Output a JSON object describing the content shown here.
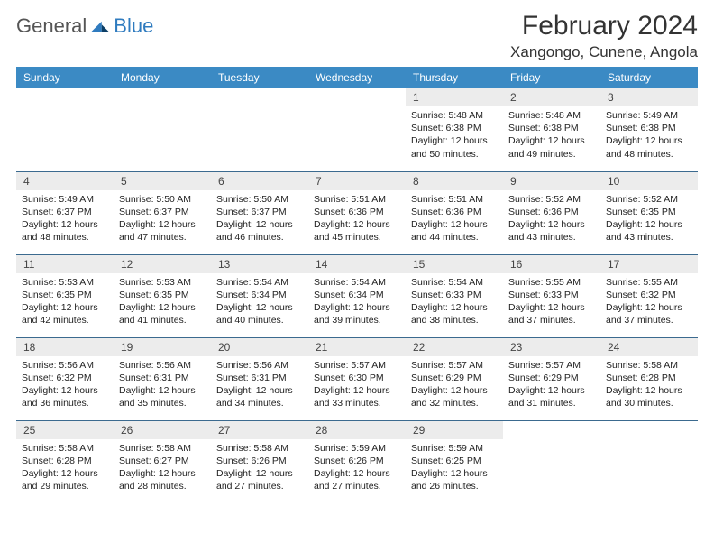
{
  "logo": {
    "general": "General",
    "blue": "Blue"
  },
  "title": "February 2024",
  "location": "Xangongo, Cunene, Angola",
  "colors": {
    "header_bg": "#3b8ac4",
    "header_fg": "#ffffff",
    "daynum_bg": "#ececec",
    "row_border": "#3b6a8f",
    "logo_blue": "#2f7bbf"
  },
  "weekdays": [
    "Sunday",
    "Monday",
    "Tuesday",
    "Wednesday",
    "Thursday",
    "Friday",
    "Saturday"
  ],
  "weeks": [
    [
      {
        "empty": true
      },
      {
        "empty": true
      },
      {
        "empty": true
      },
      {
        "empty": true
      },
      {
        "n": "1",
        "sr": "5:48 AM",
        "ss": "6:38 PM",
        "dh": "12",
        "dm": "50"
      },
      {
        "n": "2",
        "sr": "5:48 AM",
        "ss": "6:38 PM",
        "dh": "12",
        "dm": "49"
      },
      {
        "n": "3",
        "sr": "5:49 AM",
        "ss": "6:38 PM",
        "dh": "12",
        "dm": "48"
      }
    ],
    [
      {
        "n": "4",
        "sr": "5:49 AM",
        "ss": "6:37 PM",
        "dh": "12",
        "dm": "48"
      },
      {
        "n": "5",
        "sr": "5:50 AM",
        "ss": "6:37 PM",
        "dh": "12",
        "dm": "47"
      },
      {
        "n": "6",
        "sr": "5:50 AM",
        "ss": "6:37 PM",
        "dh": "12",
        "dm": "46"
      },
      {
        "n": "7",
        "sr": "5:51 AM",
        "ss": "6:36 PM",
        "dh": "12",
        "dm": "45"
      },
      {
        "n": "8",
        "sr": "5:51 AM",
        "ss": "6:36 PM",
        "dh": "12",
        "dm": "44"
      },
      {
        "n": "9",
        "sr": "5:52 AM",
        "ss": "6:36 PM",
        "dh": "12",
        "dm": "43"
      },
      {
        "n": "10",
        "sr": "5:52 AM",
        "ss": "6:35 PM",
        "dh": "12",
        "dm": "43"
      }
    ],
    [
      {
        "n": "11",
        "sr": "5:53 AM",
        "ss": "6:35 PM",
        "dh": "12",
        "dm": "42"
      },
      {
        "n": "12",
        "sr": "5:53 AM",
        "ss": "6:35 PM",
        "dh": "12",
        "dm": "41"
      },
      {
        "n": "13",
        "sr": "5:54 AM",
        "ss": "6:34 PM",
        "dh": "12",
        "dm": "40"
      },
      {
        "n": "14",
        "sr": "5:54 AM",
        "ss": "6:34 PM",
        "dh": "12",
        "dm": "39"
      },
      {
        "n": "15",
        "sr": "5:54 AM",
        "ss": "6:33 PM",
        "dh": "12",
        "dm": "38"
      },
      {
        "n": "16",
        "sr": "5:55 AM",
        "ss": "6:33 PM",
        "dh": "12",
        "dm": "37"
      },
      {
        "n": "17",
        "sr": "5:55 AM",
        "ss": "6:32 PM",
        "dh": "12",
        "dm": "37"
      }
    ],
    [
      {
        "n": "18",
        "sr": "5:56 AM",
        "ss": "6:32 PM",
        "dh": "12",
        "dm": "36"
      },
      {
        "n": "19",
        "sr": "5:56 AM",
        "ss": "6:31 PM",
        "dh": "12",
        "dm": "35"
      },
      {
        "n": "20",
        "sr": "5:56 AM",
        "ss": "6:31 PM",
        "dh": "12",
        "dm": "34"
      },
      {
        "n": "21",
        "sr": "5:57 AM",
        "ss": "6:30 PM",
        "dh": "12",
        "dm": "33"
      },
      {
        "n": "22",
        "sr": "5:57 AM",
        "ss": "6:29 PM",
        "dh": "12",
        "dm": "32"
      },
      {
        "n": "23",
        "sr": "5:57 AM",
        "ss": "6:29 PM",
        "dh": "12",
        "dm": "31"
      },
      {
        "n": "24",
        "sr": "5:58 AM",
        "ss": "6:28 PM",
        "dh": "12",
        "dm": "30"
      }
    ],
    [
      {
        "n": "25",
        "sr": "5:58 AM",
        "ss": "6:28 PM",
        "dh": "12",
        "dm": "29"
      },
      {
        "n": "26",
        "sr": "5:58 AM",
        "ss": "6:27 PM",
        "dh": "12",
        "dm": "28"
      },
      {
        "n": "27",
        "sr": "5:58 AM",
        "ss": "6:26 PM",
        "dh": "12",
        "dm": "27"
      },
      {
        "n": "28",
        "sr": "5:59 AM",
        "ss": "6:26 PM",
        "dh": "12",
        "dm": "27"
      },
      {
        "n": "29",
        "sr": "5:59 AM",
        "ss": "6:25 PM",
        "dh": "12",
        "dm": "26"
      },
      {
        "empty": true
      },
      {
        "empty": true
      }
    ]
  ],
  "labels": {
    "sunrise": "Sunrise: ",
    "sunset": "Sunset: ",
    "daylight_pre": "Daylight: ",
    "hours_and": " hours and ",
    "minutes": " minutes."
  }
}
